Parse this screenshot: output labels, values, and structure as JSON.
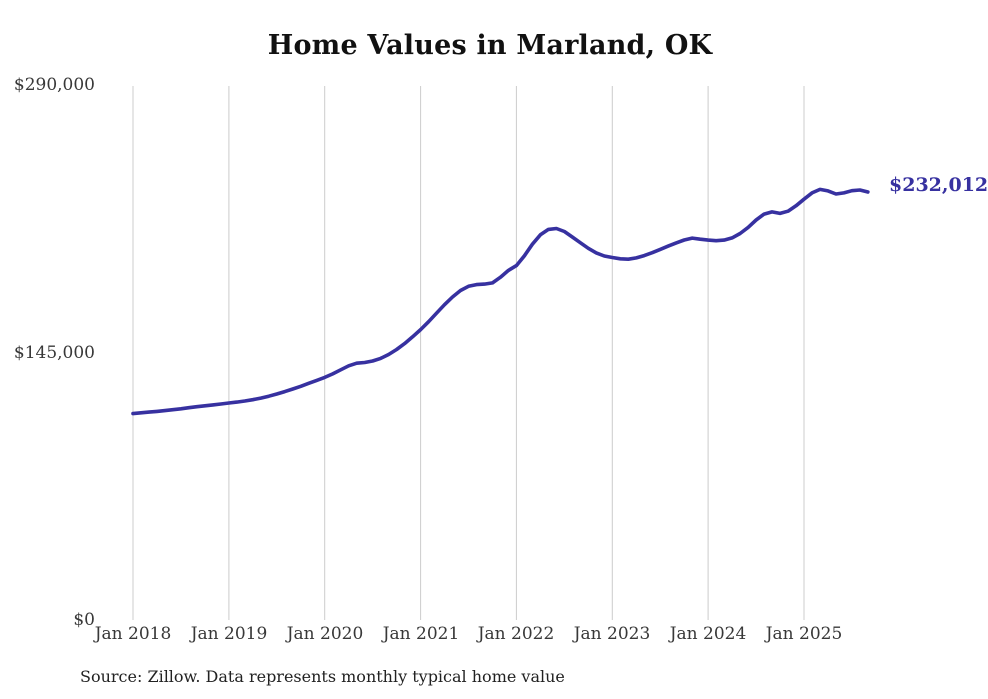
{
  "title": "Home Values in Marland, OK",
  "source_note": "Source: Zillow. Data represents monthly typical home value",
  "end_label": "$232,012",
  "colors": {
    "line": "#3731a0",
    "grid": "#cccccc",
    "axis_text": "#383838",
    "title_text": "#111111",
    "end_label_text": "#3731a0",
    "background": "#ffffff"
  },
  "chart_data": {
    "type": "line",
    "title": "Home Values in Marland, OK",
    "xlabel": "",
    "ylabel": "",
    "ylim": [
      0,
      290000
    ],
    "grid": "vertical-only",
    "legend_position": "none",
    "y_ticks": [
      {
        "label": "$0",
        "value": 0
      },
      {
        "label": "$145,000",
        "value": 145000
      },
      {
        "label": "$290,000",
        "value": 290000
      }
    ],
    "x_ticks": [
      {
        "label": "Jan 2018",
        "month_index": 0
      },
      {
        "label": "Jan 2019",
        "month_index": 12
      },
      {
        "label": "Jan 2020",
        "month_index": 24
      },
      {
        "label": "Jan 2021",
        "month_index": 36
      },
      {
        "label": "Jan 2022",
        "month_index": 48
      },
      {
        "label": "Jan 2023",
        "month_index": 60
      },
      {
        "label": "Jan 2024",
        "month_index": 72
      },
      {
        "label": "Jan 2025",
        "month_index": 84
      }
    ],
    "x": [
      "2018-01",
      "2018-02",
      "2018-03",
      "2018-04",
      "2018-05",
      "2018-06",
      "2018-07",
      "2018-08",
      "2018-09",
      "2018-10",
      "2018-11",
      "2018-12",
      "2019-01",
      "2019-02",
      "2019-03",
      "2019-04",
      "2019-05",
      "2019-06",
      "2019-07",
      "2019-08",
      "2019-09",
      "2019-10",
      "2019-11",
      "2019-12",
      "2020-01",
      "2020-02",
      "2020-03",
      "2020-04",
      "2020-05",
      "2020-06",
      "2020-07",
      "2020-08",
      "2020-09",
      "2020-10",
      "2020-11",
      "2020-12",
      "2021-01",
      "2021-02",
      "2021-03",
      "2021-04",
      "2021-05",
      "2021-06",
      "2021-07",
      "2021-08",
      "2021-09",
      "2021-10",
      "2021-11",
      "2021-12",
      "2022-01",
      "2022-02",
      "2022-03",
      "2022-04",
      "2022-05",
      "2022-06",
      "2022-07",
      "2022-08",
      "2022-09",
      "2022-10",
      "2022-11",
      "2022-12",
      "2023-01",
      "2023-02",
      "2023-03",
      "2023-04",
      "2023-05",
      "2023-06",
      "2023-07",
      "2023-08",
      "2023-09",
      "2023-10",
      "2023-11",
      "2023-12",
      "2024-01",
      "2024-02",
      "2024-03",
      "2024-04",
      "2024-05",
      "2024-06",
      "2024-07",
      "2024-08",
      "2024-09",
      "2024-10",
      "2024-11",
      "2024-12",
      "2025-01",
      "2025-02",
      "2025-03",
      "2025-04",
      "2025-05",
      "2025-06",
      "2025-07",
      "2025-08",
      "2025-09"
    ],
    "series": [
      {
        "name": "Typical home value",
        "values": [
          111900,
          112300,
          112700,
          113100,
          113500,
          114000,
          114500,
          115100,
          115600,
          116100,
          116600,
          117100,
          117600,
          118100,
          118700,
          119400,
          120300,
          121300,
          122500,
          123800,
          125200,
          126700,
          128300,
          129900,
          131500,
          133400,
          135600,
          137800,
          139200,
          139600,
          140400,
          141800,
          143900,
          146600,
          149800,
          153500,
          157400,
          161700,
          166300,
          170900,
          175100,
          178600,
          180900,
          181800,
          182100,
          182700,
          185800,
          189500,
          192100,
          197400,
          203700,
          208800,
          211700,
          212200,
          210600,
          207600,
          204500,
          201500,
          199000,
          197300,
          196500,
          195800,
          195600,
          196300,
          197500,
          199100,
          200900,
          202700,
          204400,
          206000,
          207000,
          206400,
          205900,
          205600,
          205900,
          207100,
          209500,
          212800,
          216800,
          220000,
          221200,
          220400,
          221600,
          224500,
          228100,
          231500,
          233400,
          232600,
          230900,
          231500,
          232700,
          233100,
          232012
        ]
      }
    ],
    "final_value": 232012,
    "final_value_label": "$232,012"
  }
}
